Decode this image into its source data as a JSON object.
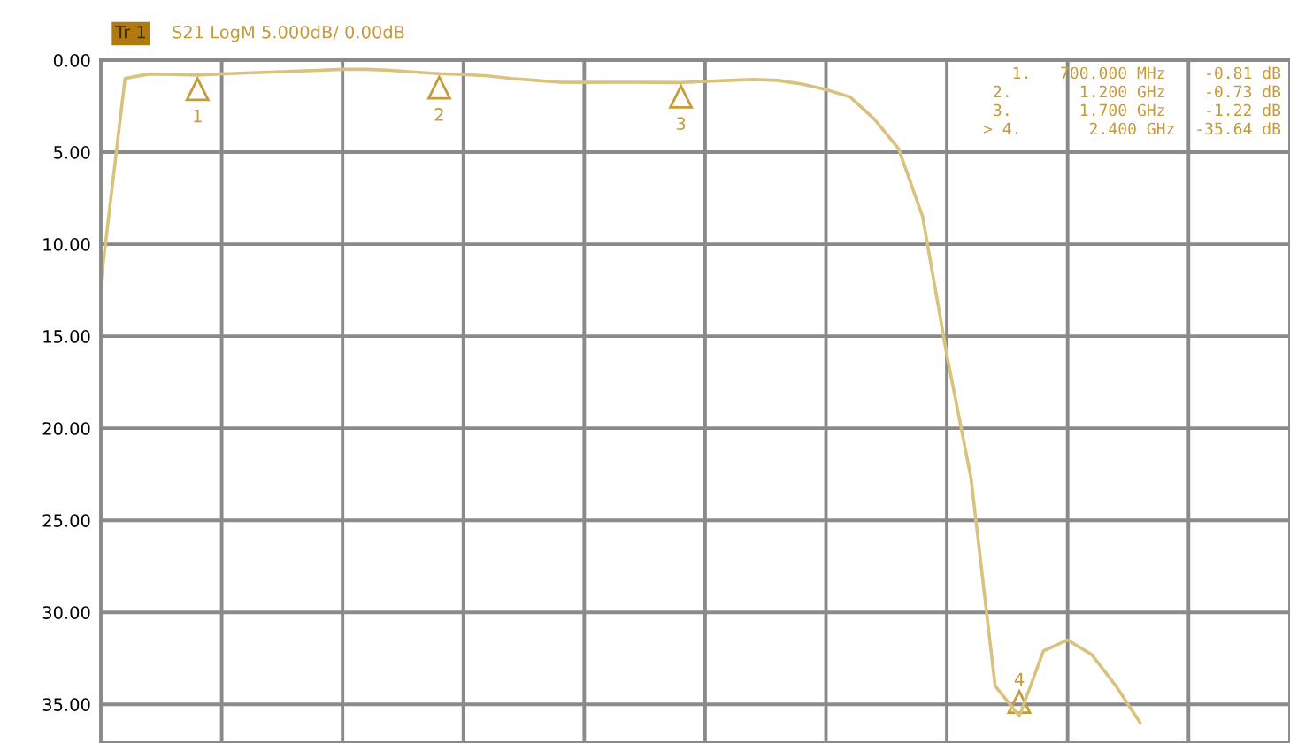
{
  "chart_data": {
    "type": "line",
    "title": "S21 LogM 5.000dB/ 0.00dB",
    "categories": [
      null,
      null,
      null,
      null,
      null,
      null,
      null,
      null,
      null,
      null,
      null,
      null,
      null,
      null,
      null,
      null,
      null,
      null,
      null,
      null,
      null,
      null,
      null,
      null,
      null,
      null,
      null,
      null,
      null,
      null,
      null,
      null,
      null,
      null,
      null,
      null,
      null,
      null,
      null,
      null,
      null,
      null,
      null,
      null,
      null,
      null,
      null,
      null,
      null,
      null
    ],
    "series": [
      {
        "color": "#d9c27e",
        "values": [
          -12.1,
          -1.0,
          -0.75,
          -0.78,
          -0.81,
          -0.75,
          -0.7,
          -0.65,
          -0.6,
          -0.55,
          -0.5,
          -0.5,
          -0.55,
          -0.65,
          -0.73,
          -0.78,
          -0.85,
          -1.0,
          -1.1,
          -1.2,
          -1.21,
          -1.2,
          -1.2,
          -1.21,
          -1.22,
          -1.15,
          -1.1,
          -1.05,
          -1.1,
          -1.3,
          -1.6,
          -2.0,
          -3.2,
          -4.8,
          -8.5,
          -16.0,
          -22.7,
          -34.0,
          -35.64,
          -32.1,
          -31.5,
          -32.3,
          -34.0,
          -36.0,
          null,
          null,
          null,
          null,
          null,
          null
        ]
      }
    ],
    "ylim": [
      -37.1,
      0
    ],
    "yticks": [
      {
        "value": 0,
        "label": "0.00"
      },
      {
        "value": -5,
        "label": "5.00"
      },
      {
        "value": -10,
        "label": "10.00"
      },
      {
        "value": -15,
        "label": "15.00"
      },
      {
        "value": -20,
        "label": "20.00"
      },
      {
        "value": -25,
        "label": "25.00"
      },
      {
        "value": -30,
        "label": "30.00"
      },
      {
        "value": -35,
        "label": "35.00"
      }
    ],
    "tick_labels": "y",
    "grid": true,
    "marker": "none",
    "line_style": "solid",
    "annotations": [
      "Tr 1",
      {
        "text": "1",
        "y": -0.81
      },
      {
        "text": "2",
        "y": -0.73
      },
      {
        "text": "3",
        "y": -1.22
      },
      {
        "text": "4",
        "y": -35.64
      },
      "1.   700.000 MHz    -0.81 dB",
      "2.       1.200 GHz    -0.73 dB",
      "3.       1.700 GHz    -1.22 dB",
      "> 4.       2.400 GHz  -35.64 dB"
    ]
  }
}
